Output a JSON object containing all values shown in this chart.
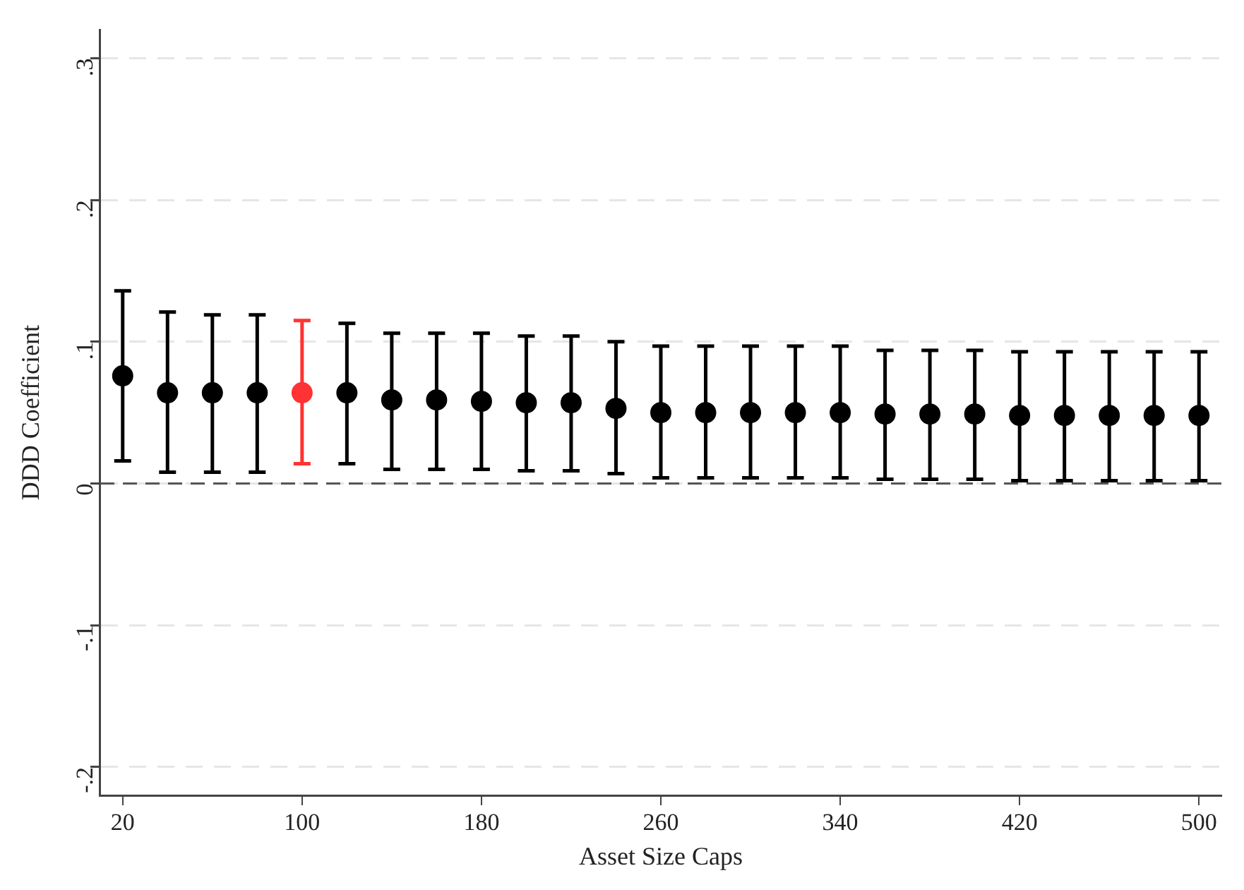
{
  "chart_data": {
    "type": "scatter",
    "xlabel": "Asset Size Caps",
    "ylabel": "DDD Coefficient",
    "x": [
      20,
      40,
      60,
      80,
      100,
      120,
      140,
      160,
      180,
      200,
      220,
      240,
      260,
      280,
      300,
      320,
      340,
      360,
      380,
      400,
      420,
      440,
      460,
      480,
      500
    ],
    "values": [
      0.076,
      0.064,
      0.064,
      0.064,
      0.064,
      0.064,
      0.059,
      0.059,
      0.058,
      0.057,
      0.057,
      0.053,
      0.05,
      0.05,
      0.05,
      0.05,
      0.05,
      0.049,
      0.049,
      0.049,
      0.048,
      0.048,
      0.048,
      0.048,
      0.048
    ],
    "errors": [
      [
        0.016,
        0.136
      ],
      [
        0.008,
        0.121
      ],
      [
        0.008,
        0.119
      ],
      [
        0.008,
        0.119
      ],
      [
        0.014,
        0.115
      ],
      [
        0.014,
        0.113
      ],
      [
        0.01,
        0.106
      ],
      [
        0.01,
        0.106
      ],
      [
        0.01,
        0.106
      ],
      [
        0.009,
        0.104
      ],
      [
        0.009,
        0.104
      ],
      [
        0.007,
        0.1
      ],
      [
        0.004,
        0.097
      ],
      [
        0.004,
        0.097
      ],
      [
        0.004,
        0.097
      ],
      [
        0.004,
        0.097
      ],
      [
        0.004,
        0.097
      ],
      [
        0.003,
        0.094
      ],
      [
        0.003,
        0.094
      ],
      [
        0.003,
        0.094
      ],
      [
        0.002,
        0.093
      ],
      [
        0.002,
        0.093
      ],
      [
        0.002,
        0.093
      ],
      [
        0.002,
        0.093
      ],
      [
        0.002,
        0.093
      ]
    ],
    "colors": [
      "#000000",
      "#000000",
      "#000000",
      "#000000",
      "#ff3333",
      "#000000",
      "#000000",
      "#000000",
      "#000000",
      "#000000",
      "#000000",
      "#000000",
      "#000000",
      "#000000",
      "#000000",
      "#000000",
      "#000000",
      "#000000",
      "#000000",
      "#000000",
      "#000000",
      "#000000",
      "#000000",
      "#000000",
      "#000000"
    ],
    "xlim": [
      10,
      510
    ],
    "xticks": [
      20,
      100,
      180,
      260,
      340,
      420,
      500
    ],
    "ylim": [
      -0.22,
      0.32
    ],
    "yticks": [
      {
        "value": -0.2,
        "label": "-.2"
      },
      {
        "value": -0.1,
        "label": "-.1"
      },
      {
        "value": 0,
        "label": "0"
      },
      {
        "value": 0.1,
        "label": ".1"
      },
      {
        "value": 0.2,
        "label": ".2"
      },
      {
        "value": 0.3,
        "label": ".3"
      }
    ],
    "ref_lines": [
      {
        "axis": "y",
        "value": 0,
        "color": "#555555",
        "line_style": "dashed"
      }
    ],
    "grid": "y",
    "legend": false,
    "marker": "circle"
  }
}
